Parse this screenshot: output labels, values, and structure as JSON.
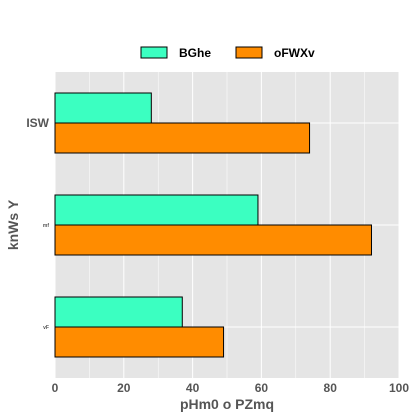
{
  "chart_data": {
    "type": "bar",
    "orientation": "horizontal",
    "categories": [
      "ISW",
      "mf",
      "vF"
    ],
    "series": [
      {
        "name": "BGhe",
        "values": [
          28,
          59,
          37
        ],
        "color": "#3bffc1"
      },
      {
        "name": "oFWXv",
        "values": [
          74,
          92,
          49
        ],
        "color": "#ff8c00"
      }
    ],
    "xlabel": "pHm0 o PZmq",
    "ylabel": "knWs Y",
    "xlim": [
      0,
      100
    ],
    "xticks": [
      "0",
      "20",
      "40",
      "60",
      "80",
      "100"
    ],
    "grid": true,
    "legend_position": "top-center",
    "background": "#e5e5e5"
  }
}
